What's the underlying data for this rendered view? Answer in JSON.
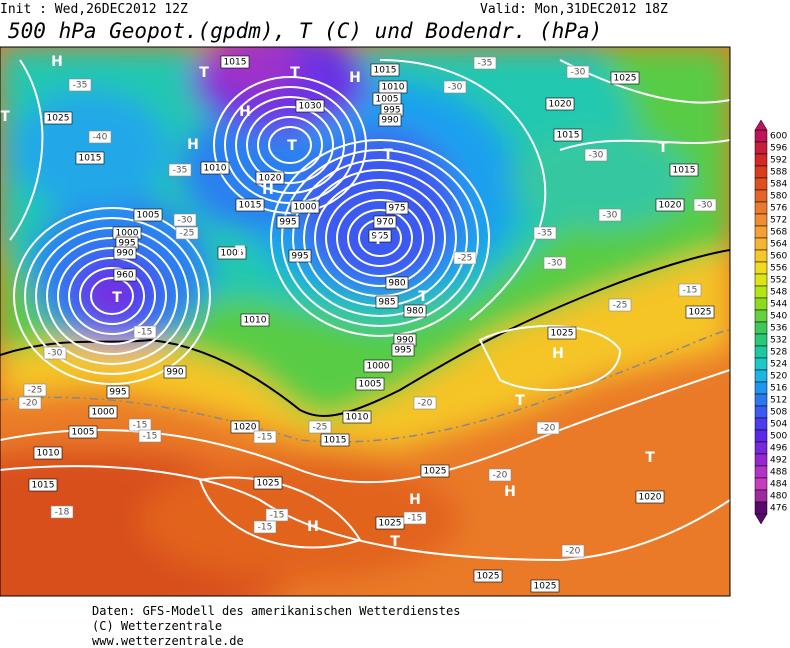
{
  "header": {
    "init": "Init : Wed,26DEC2012 12Z",
    "valid": "Valid: Mon,31DEC2012 18Z",
    "title": "500 hPa Geopot.(gpdm), T (C) und Bodendr. (hPa)"
  },
  "legend": {
    "scale": [
      {
        "value": 600,
        "color": "#c0145a"
      },
      {
        "value": 596,
        "color": "#c81e3c"
      },
      {
        "value": 592,
        "color": "#d22828"
      },
      {
        "value": 588,
        "color": "#dc3c1e"
      },
      {
        "value": 584,
        "color": "#e0501e"
      },
      {
        "value": 580,
        "color": "#e66428"
      },
      {
        "value": 576,
        "color": "#eb7a2d"
      },
      {
        "value": 572,
        "color": "#f08c32"
      },
      {
        "value": 568,
        "color": "#f5a032"
      },
      {
        "value": 564,
        "color": "#f5b432"
      },
      {
        "value": 560,
        "color": "#f5c828"
      },
      {
        "value": 556,
        "color": "#f0dc1e"
      },
      {
        "value": 552,
        "color": "#dce614"
      },
      {
        "value": 548,
        "color": "#b4e614"
      },
      {
        "value": 544,
        "color": "#8cdc1e"
      },
      {
        "value": 540,
        "color": "#64d23c"
      },
      {
        "value": 536,
        "color": "#3cc85a"
      },
      {
        "value": 532,
        "color": "#28c878"
      },
      {
        "value": 528,
        "color": "#1ec8a0"
      },
      {
        "value": 524,
        "color": "#1ec8c8"
      },
      {
        "value": 520,
        "color": "#1eb4e6"
      },
      {
        "value": 516,
        "color": "#1e96f0"
      },
      {
        "value": 512,
        "color": "#2878f0"
      },
      {
        "value": 508,
        "color": "#3c5af0"
      },
      {
        "value": 504,
        "color": "#4b3cf0"
      },
      {
        "value": 500,
        "color": "#5a28e6"
      },
      {
        "value": 496,
        "color": "#7828dc"
      },
      {
        "value": 492,
        "color": "#9628d2"
      },
      {
        "value": 488,
        "color": "#b432c8"
      },
      {
        "value": 484,
        "color": "#c83cbe"
      },
      {
        "value": 480,
        "color": "#a028a0"
      },
      {
        "value": 476,
        "color": "#5a0a6e"
      }
    ]
  },
  "map": {
    "pressure_labels": [
      "1015",
      "1015",
      "1025",
      "1010",
      "1005",
      "995",
      "990",
      "1020",
      "1015",
      "1015",
      "1020",
      "1025",
      "1015",
      "1010",
      "1020",
      "1015",
      "1000",
      "1005",
      "995",
      "995",
      "975",
      "970",
      "965",
      "980",
      "985",
      "980",
      "990",
      "995",
      "1000",
      "1005",
      "1010",
      "1015",
      "1005",
      "1010",
      "1000",
      "995",
      "990",
      "960",
      "990",
      "995",
      "1000",
      "1005",
      "1010",
      "1015",
      "1020",
      "1025",
      "1025",
      "1025",
      "1025",
      "1025",
      "1020",
      "1025",
      "1025",
      "1030"
    ],
    "temperature_labels": [
      "-35",
      "-30",
      "-30",
      "-35",
      "-40",
      "-35",
      "-30",
      "-25",
      "-30",
      "-30",
      "-30",
      "-35",
      "-30",
      "-25",
      "-25",
      "-15",
      "-15",
      "-30",
      "-25",
      "-20",
      "-15",
      "-15",
      "-15",
      "-25",
      "-20",
      "-20",
      "-20",
      "-15",
      "-15",
      "-15",
      "-18",
      "-20"
    ],
    "markers": [
      "H",
      "T",
      "T",
      "H",
      "T",
      "H",
      "H",
      "T",
      "T",
      "H",
      "T",
      "T",
      "T",
      "T",
      "T",
      "H",
      "T",
      "T",
      "H",
      "H",
      "T",
      "H"
    ]
  },
  "footer": [
    "Daten: GFS-Modell des amerikanischen Wetterdienstes",
    "(C) Wetterzentrale",
    "www.wetterzentrale.de"
  ]
}
